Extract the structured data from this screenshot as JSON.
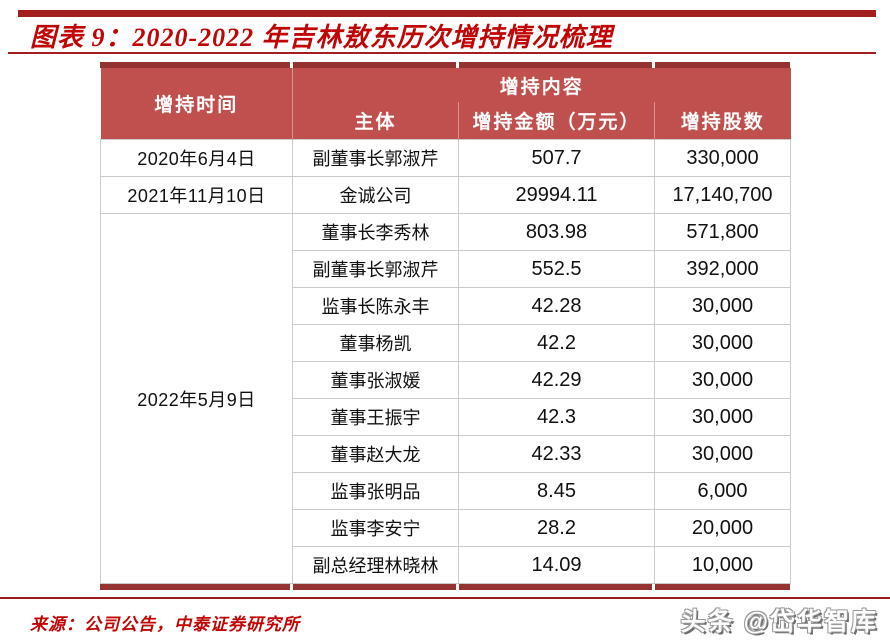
{
  "page": {
    "title": "图表 9：2020-2022 年吉林敖东历次增持情况梳理",
    "source": "来源：公司公告，中泰证券研究所",
    "watermark": "头条 @岱华智库"
  },
  "colors": {
    "title_red": "#C00505",
    "rule_red": "#A31E1F",
    "table_header_fill": "#C0504D",
    "table_border_dark": "#943331",
    "grid_line": "#CBCBCB",
    "body_text": "#111111",
    "watermark_gray": "#6F6F6F"
  },
  "table": {
    "header": {
      "col_time": "增持时间",
      "group": "增持内容",
      "col_subject": "主体",
      "col_amount": "增持金额（万元）",
      "col_shares": "增持股数"
    },
    "groups": [
      {
        "date": "2020年6月4日",
        "rows": [
          {
            "subject": "副董事长郭淑芹",
            "amount": "507.7",
            "shares": "330,000"
          }
        ]
      },
      {
        "date": "2021年11月10日",
        "rows": [
          {
            "subject": "金诚公司",
            "amount": "29994.11",
            "shares": "17,140,700"
          }
        ]
      },
      {
        "date": "2022年5月9日",
        "rows": [
          {
            "subject": "董事长李秀林",
            "amount": "803.98",
            "shares": "571,800"
          },
          {
            "subject": "副董事长郭淑芹",
            "amount": "552.5",
            "shares": "392,000"
          },
          {
            "subject": "监事长陈永丰",
            "amount": "42.28",
            "shares": "30,000"
          },
          {
            "subject": "董事杨凯",
            "amount": "42.2",
            "shares": "30,000"
          },
          {
            "subject": "董事张淑媛",
            "amount": "42.29",
            "shares": "30,000"
          },
          {
            "subject": "董事王振宇",
            "amount": "42.3",
            "shares": "30,000"
          },
          {
            "subject": "董事赵大龙",
            "amount": "42.33",
            "shares": "30,000"
          },
          {
            "subject": "监事张明品",
            "amount": "8.45",
            "shares": "6,000"
          },
          {
            "subject": "监事李安宁",
            "amount": "28.2",
            "shares": "20,000"
          },
          {
            "subject": "副总经理林晓林",
            "amount": "14.09",
            "shares": "10,000"
          }
        ]
      }
    ]
  }
}
